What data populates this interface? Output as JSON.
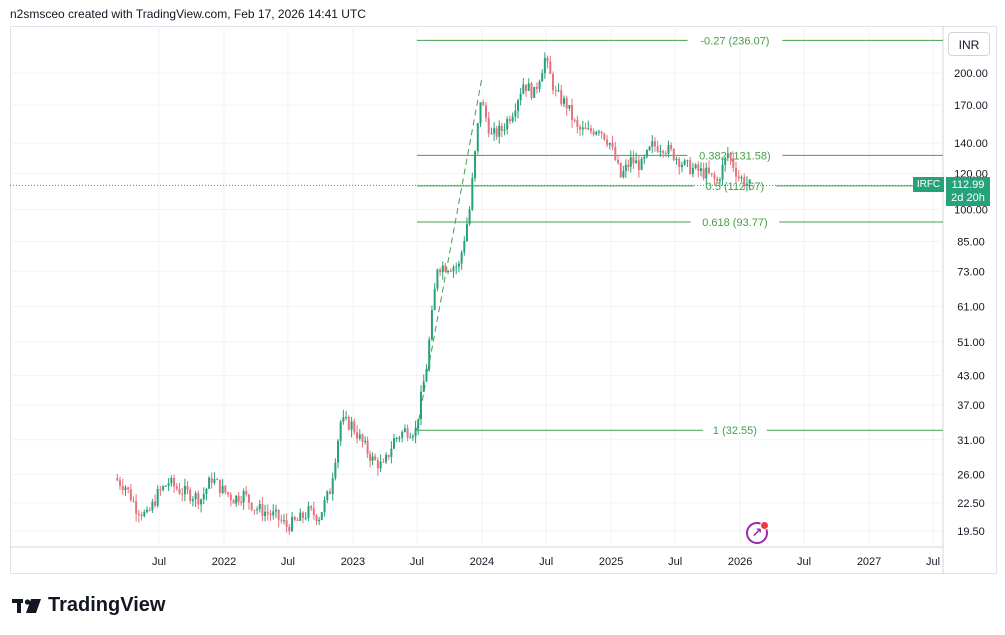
{
  "header": {
    "text": "n2smsceo created with TradingView.com, Feb 17, 2026 14:41 UTC"
  },
  "currency_button": {
    "label": "INR"
  },
  "price_tag": {
    "symbol": "IRFC",
    "price": "112.99",
    "countdown": "2d 20h"
  },
  "brand": {
    "name": "TradingView"
  },
  "colors": {
    "up": "#26a27a",
    "down": "#e5737b",
    "fib": "#43a047",
    "grid": "#f0f3fa"
  },
  "chart_data": {
    "type": "candlestick",
    "symbol": "IRFC",
    "scale": "log",
    "ylim": [
      18.5,
      255
    ],
    "y_ticks": [
      19.5,
      22.5,
      26.0,
      31.0,
      37.0,
      43.0,
      51.0,
      61.0,
      73.0,
      85.0,
      100.0,
      120.0,
      140.0,
      170.0,
      200.0
    ],
    "y_tick_labels": [
      "19.50",
      "22.50",
      "26.00",
      "31.00",
      "37.00",
      "43.00",
      "51.00",
      "61.00",
      "73.00",
      "85.00",
      "100.00",
      "120.00",
      "140.00",
      "170.00",
      "200.00"
    ],
    "x_ticks": [
      {
        "label": "Jul",
        "date": "2021-07-01"
      },
      {
        "label": "2022",
        "date": "2022-01-01"
      },
      {
        "label": "Jul",
        "date": "2022-07-01"
      },
      {
        "label": "2023",
        "date": "2023-01-01"
      },
      {
        "label": "Jul",
        "date": "2023-07-01"
      },
      {
        "label": "2024",
        "date": "2024-01-01"
      },
      {
        "label": "Jul",
        "date": "2024-07-01"
      },
      {
        "label": "2025",
        "date": "2025-01-01"
      },
      {
        "label": "Jul",
        "date": "2025-07-01"
      },
      {
        "label": "2026",
        "date": "2026-01-01"
      },
      {
        "label": "Jul",
        "date": "2026-07-01"
      },
      {
        "label": "2027",
        "date": "2027-01-01"
      },
      {
        "label": "Jul",
        "date": "2027-07-01"
      }
    ],
    "price_series": [
      {
        "date": "2021-03-01",
        "close": 25.5
      },
      {
        "date": "2021-04-01",
        "close": 24.5
      },
      {
        "date": "2021-05-01",
        "close": 22.0
      },
      {
        "date": "2021-06-01",
        "close": 21.0
      },
      {
        "date": "2021-07-01",
        "close": 23.5
      },
      {
        "date": "2021-08-01",
        "close": 25.0
      },
      {
        "date": "2021-09-01",
        "close": 24.0
      },
      {
        "date": "2021-10-01",
        "close": 23.5
      },
      {
        "date": "2021-11-01",
        "close": 23.0
      },
      {
        "date": "2021-12-01",
        "close": 25.5
      },
      {
        "date": "2022-01-01",
        "close": 24.0
      },
      {
        "date": "2022-02-01",
        "close": 23.0
      },
      {
        "date": "2022-03-01",
        "close": 23.5
      },
      {
        "date": "2022-04-01",
        "close": 22.0
      },
      {
        "date": "2022-05-01",
        "close": 21.5
      },
      {
        "date": "2022-06-01",
        "close": 21.0
      },
      {
        "date": "2022-07-01",
        "close": 20.0
      },
      {
        "date": "2022-08-01",
        "close": 20.5
      },
      {
        "date": "2022-09-01",
        "close": 21.5
      },
      {
        "date": "2022-10-01",
        "close": 21.0
      },
      {
        "date": "2022-11-01",
        "close": 24.0
      },
      {
        "date": "2022-12-01",
        "close": 34.0
      },
      {
        "date": "2023-01-01",
        "close": 33.5
      },
      {
        "date": "2023-02-01",
        "close": 30.5
      },
      {
        "date": "2023-03-01",
        "close": 28.0
      },
      {
        "date": "2023-04-01",
        "close": 27.0
      },
      {
        "date": "2023-05-01",
        "close": 31.0
      },
      {
        "date": "2023-06-01",
        "close": 32.5
      },
      {
        "date": "2023-07-01",
        "close": 32.5
      },
      {
        "date": "2023-08-01",
        "close": 45.0
      },
      {
        "date": "2023-09-01",
        "close": 75.0
      },
      {
        "date": "2023-10-01",
        "close": 75.0
      },
      {
        "date": "2023-11-01",
        "close": 75.0
      },
      {
        "date": "2023-12-01",
        "close": 100.0
      },
      {
        "date": "2024-01-01",
        "close": 175.0
      },
      {
        "date": "2024-02-01",
        "close": 145.0
      },
      {
        "date": "2024-03-01",
        "close": 150.0
      },
      {
        "date": "2024-04-01",
        "close": 165.0
      },
      {
        "date": "2024-05-01",
        "close": 190.0
      },
      {
        "date": "2024-06-01",
        "close": 180.0
      },
      {
        "date": "2024-07-01",
        "close": 215.0
      },
      {
        "date": "2024-08-01",
        "close": 180.0
      },
      {
        "date": "2024-09-01",
        "close": 170.0
      },
      {
        "date": "2024-10-01",
        "close": 150.0
      },
      {
        "date": "2024-11-01",
        "close": 148.0
      },
      {
        "date": "2024-12-01",
        "close": 152.0
      },
      {
        "date": "2025-01-01",
        "close": 140.0
      },
      {
        "date": "2025-02-01",
        "close": 118.0
      },
      {
        "date": "2025-03-01",
        "close": 128.0
      },
      {
        "date": "2025-04-01",
        "close": 125.0
      },
      {
        "date": "2025-05-01",
        "close": 138.0
      },
      {
        "date": "2025-06-01",
        "close": 138.0
      },
      {
        "date": "2025-07-01",
        "close": 132.0
      },
      {
        "date": "2025-08-01",
        "close": 125.0
      },
      {
        "date": "2025-09-01",
        "close": 122.0
      },
      {
        "date": "2025-10-01",
        "close": 120.0
      },
      {
        "date": "2025-11-01",
        "close": 115.0
      },
      {
        "date": "2025-12-01",
        "close": 133.0
      },
      {
        "date": "2026-01-01",
        "close": 118.0
      },
      {
        "date": "2026-02-01",
        "close": 113.0
      }
    ],
    "fib_levels": [
      {
        "label": "-0.27 (236.07)",
        "value": 236.07
      },
      {
        "label": "0.382 (131.58)",
        "value": 131.58
      },
      {
        "label": "0.5 (112.67)",
        "value": 112.67
      },
      {
        "label": "0.618 (93.77)",
        "value": 93.77
      },
      {
        "label": "1 (32.55)",
        "value": 32.55
      }
    ],
    "fib_start_date": "2023-07-01",
    "fib_trendline": [
      {
        "date": "2023-07-01",
        "value": 32.55
      },
      {
        "date": "2024-01-01",
        "value": 195.0
      }
    ],
    "current_price": 112.99
  }
}
